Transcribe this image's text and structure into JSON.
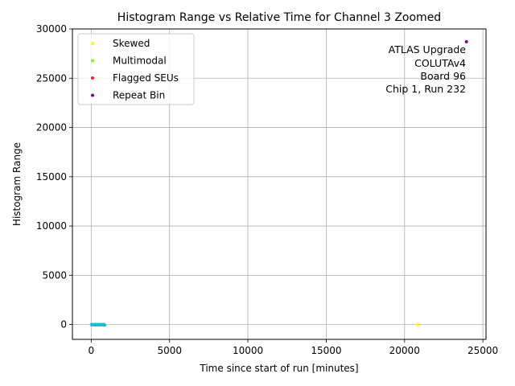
{
  "chart_data": {
    "type": "scatter",
    "title": "Histogram Range vs Relative Time for Channel 3 Zoomed",
    "xlabel": "Time since start of run [minutes]",
    "ylabel": "Histogram Range",
    "xlim": [
      -1200,
      25200
    ],
    "ylim": [
      -1500,
      30000
    ],
    "xticks": [
      0,
      5000,
      10000,
      15000,
      20000,
      25000
    ],
    "yticks": [
      0,
      5000,
      10000,
      15000,
      20000,
      25000,
      30000
    ],
    "grid": true,
    "legend_position": "top-left",
    "annotation": [
      "ATLAS Upgrade",
      "COLUTAv4",
      "Board 96",
      "Chip 1, Run 232"
    ],
    "series": [
      {
        "name": "Skewed",
        "color": "#ffff00",
        "points": [
          [
            20850,
            0
          ]
        ]
      },
      {
        "name": "Multimodal",
        "color": "#7fff00",
        "points": []
      },
      {
        "name": "Flagged SEUs",
        "color": "#ff2020",
        "points": []
      },
      {
        "name": "Repeat Bin",
        "color": "#800080",
        "points": [
          [
            23950,
            28700
          ]
        ]
      }
    ],
    "bulk_series": {
      "color": "#17becf",
      "x_range": [
        0,
        900
      ],
      "y_range": [
        -60,
        60
      ]
    }
  }
}
